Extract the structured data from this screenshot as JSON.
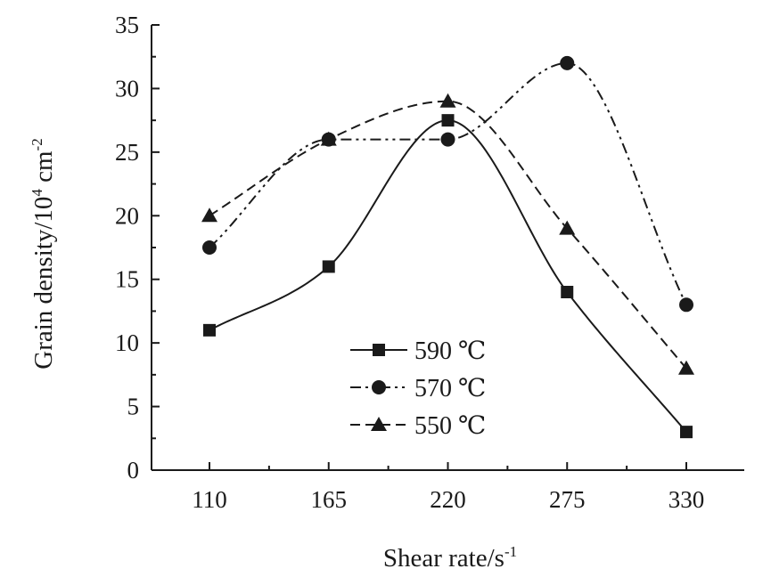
{
  "chart_data": {
    "type": "line",
    "xlabel": "Shear rate/s",
    "xlabel_sup": "-1",
    "ylabel_main": "Grain density/10",
    "ylabel_exp": "4",
    "ylabel_unit": " cm",
    "ylabel_unit_exp": "-2",
    "x": [
      110,
      165,
      220,
      275,
      330
    ],
    "categories": [
      "110",
      "165",
      "220",
      "275",
      "330"
    ],
    "ylim": [
      0,
      35
    ],
    "yticks": [
      "0",
      "5",
      "10",
      "15",
      "20",
      "25",
      "30",
      "35"
    ],
    "legend_position": "lower-center",
    "series": [
      {
        "name": "590 ℃",
        "marker": "square",
        "dash": "solid",
        "values": [
          11,
          16,
          27.5,
          14,
          3
        ]
      },
      {
        "name": "570 ℃",
        "marker": "circle",
        "dash": "dash-dot-dot",
        "values": [
          17.5,
          26,
          26,
          32,
          13
        ]
      },
      {
        "name": "550 ℃",
        "marker": "triangle",
        "dash": "dashed",
        "values": [
          20,
          26,
          29,
          19,
          8
        ]
      }
    ]
  },
  "colors": {
    "ink": "#1a1a1a",
    "background": "#ffffff"
  }
}
